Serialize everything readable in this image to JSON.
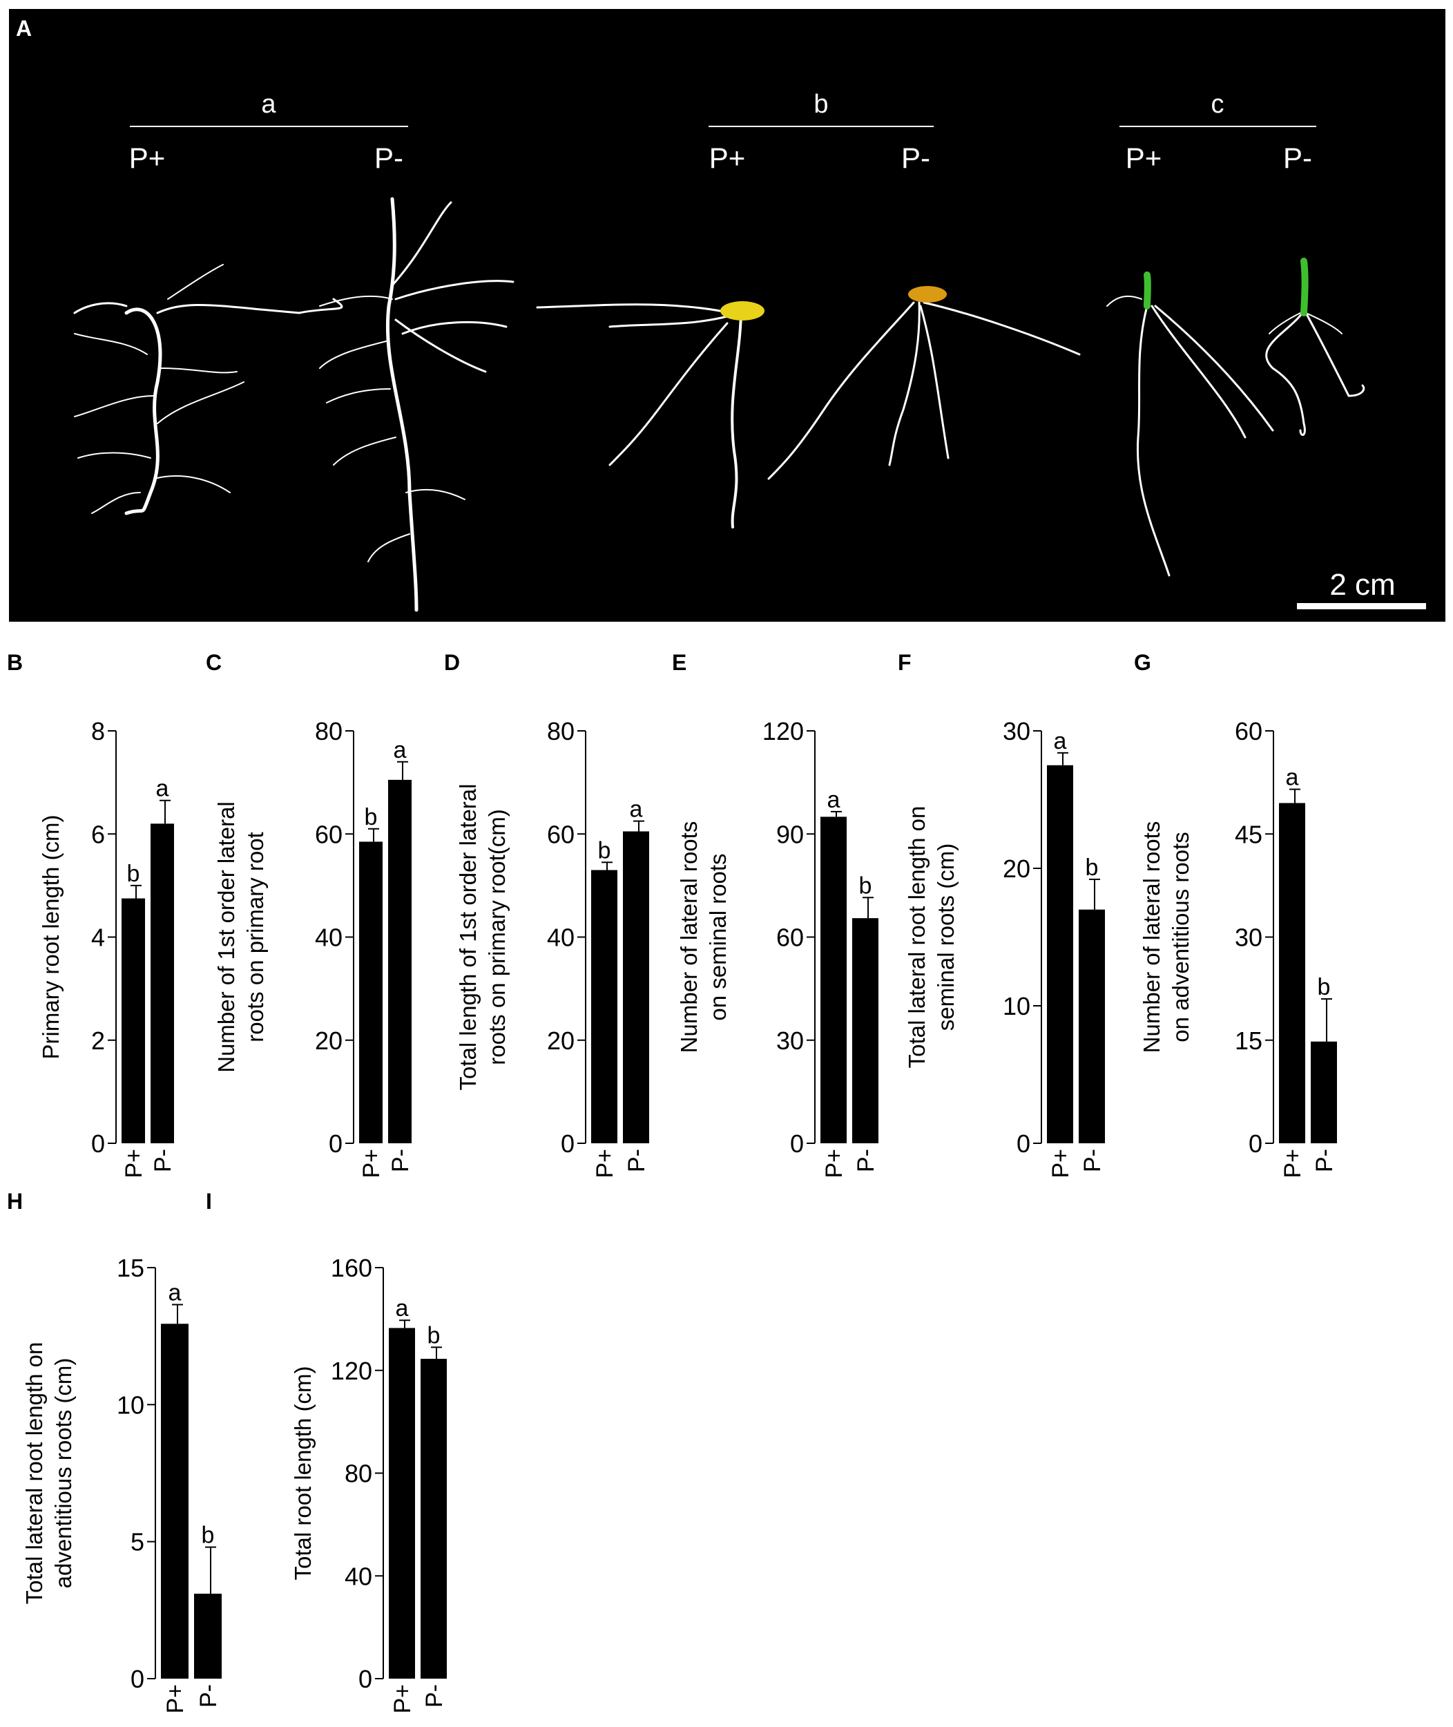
{
  "figure": {
    "panel_a_letter": "A",
    "photo": {
      "groups": [
        {
          "name": "a",
          "treatments": [
            "P+",
            "P-"
          ]
        },
        {
          "name": "b",
          "treatments": [
            "P+",
            "P-"
          ]
        },
        {
          "name": "c",
          "treatments": [
            "P+",
            "P-"
          ]
        }
      ],
      "scale_bar": "2 cm",
      "colors": {
        "background": "#000000",
        "roots": "#ffffff",
        "seed_b": "#e8d21a",
        "seed_b2": "#d99a14",
        "shoot_c": "#3fbf2f"
      }
    }
  },
  "chart_data": [
    {
      "panel": "B",
      "type": "bar",
      "categories": [
        "P+",
        "P-"
      ],
      "values": [
        4.75,
        6.2
      ],
      "errors": [
        0.25,
        0.45
      ],
      "letters": [
        "b",
        "a"
      ],
      "ylabel": [
        "Primary root length (cm)"
      ],
      "ylim": [
        0,
        8
      ],
      "yticks": [
        "0",
        "2",
        "4",
        "6",
        "8"
      ],
      "tick_values": [
        0,
        2,
        4,
        6,
        8
      ]
    },
    {
      "panel": "C",
      "type": "bar",
      "categories": [
        "P+",
        "P-"
      ],
      "values": [
        58.5,
        70.5
      ],
      "errors": [
        2.5,
        3.5
      ],
      "letters": [
        "b",
        "a"
      ],
      "ylabel": [
        "Number of 1st order lateral",
        "roots on primary root"
      ],
      "ylim": [
        0,
        80
      ],
      "yticks": [
        "0",
        "20",
        "40",
        "60",
        "80"
      ],
      "tick_values": [
        0,
        20,
        40,
        60,
        80
      ]
    },
    {
      "panel": "D",
      "type": "bar",
      "categories": [
        "P+",
        "P-"
      ],
      "values": [
        53.0,
        60.5
      ],
      "errors": [
        1.5,
        2.0
      ],
      "letters": [
        "b",
        "a"
      ],
      "ylabel": [
        "Total length of 1st order lateral",
        "roots on primary root(cm)"
      ],
      "ylim": [
        0,
        80
      ],
      "yticks": [
        "0",
        "20",
        "40",
        "60",
        "80"
      ],
      "tick_values": [
        0,
        20,
        40,
        60,
        80
      ]
    },
    {
      "panel": "E",
      "type": "bar",
      "categories": [
        "P+",
        "P-"
      ],
      "values": [
        95.0,
        65.5
      ],
      "errors": [
        1.5,
        6.0
      ],
      "letters": [
        "a",
        "b"
      ],
      "ylabel": [
        "Number of lateral roots",
        "on seminal roots"
      ],
      "ylim": [
        0,
        120
      ],
      "yticks": [
        "0",
        "30",
        "60",
        "90",
        "120"
      ],
      "tick_values": [
        0,
        30,
        60,
        90,
        120
      ]
    },
    {
      "panel": "F",
      "type": "bar",
      "categories": [
        "P+",
        "P-"
      ],
      "values": [
        27.5,
        17.0
      ],
      "errors": [
        0.9,
        2.2
      ],
      "letters": [
        "a",
        "b"
      ],
      "ylabel": [
        "Total lateral root length on",
        "seminal roots (cm)"
      ],
      "ylim": [
        0,
        30
      ],
      "yticks": [
        "0",
        "10",
        "20",
        "30"
      ],
      "tick_values": [
        0,
        10,
        20,
        30
      ]
    },
    {
      "panel": "G",
      "type": "bar",
      "categories": [
        "P+",
        "P-"
      ],
      "values": [
        49.5,
        14.8
      ],
      "errors": [
        2.0,
        6.2
      ],
      "letters": [
        "a",
        "b"
      ],
      "ylabel": [
        "Number of lateral roots",
        "on adventitious roots"
      ],
      "ylim": [
        0,
        60
      ],
      "yticks": [
        "0",
        "15",
        "30",
        "45",
        "60"
      ],
      "tick_values": [
        0,
        15,
        30,
        45,
        60
      ]
    },
    {
      "panel": "H",
      "type": "bar",
      "categories": [
        "P+",
        "P-"
      ],
      "values": [
        12.95,
        3.1
      ],
      "errors": [
        0.7,
        1.7
      ],
      "letters": [
        "a",
        "b"
      ],
      "ylabel": [
        "Total lateral root length on",
        "adventitious roots (cm)"
      ],
      "ylim": [
        0,
        15
      ],
      "yticks": [
        "0",
        "5",
        "10",
        "15"
      ],
      "tick_values": [
        0,
        5,
        10,
        15
      ]
    },
    {
      "panel": "I",
      "type": "bar",
      "categories": [
        "P+",
        "P-"
      ],
      "values": [
        136.5,
        124.5
      ],
      "errors": [
        3.0,
        4.5
      ],
      "letters": [
        "a",
        "b"
      ],
      "ylabel": [
        "Total root length (cm)"
      ],
      "ylim": [
        0,
        160
      ],
      "yticks": [
        "0",
        "40",
        "80",
        "120",
        "160"
      ],
      "tick_values": [
        0,
        40,
        80,
        120,
        160
      ]
    }
  ]
}
